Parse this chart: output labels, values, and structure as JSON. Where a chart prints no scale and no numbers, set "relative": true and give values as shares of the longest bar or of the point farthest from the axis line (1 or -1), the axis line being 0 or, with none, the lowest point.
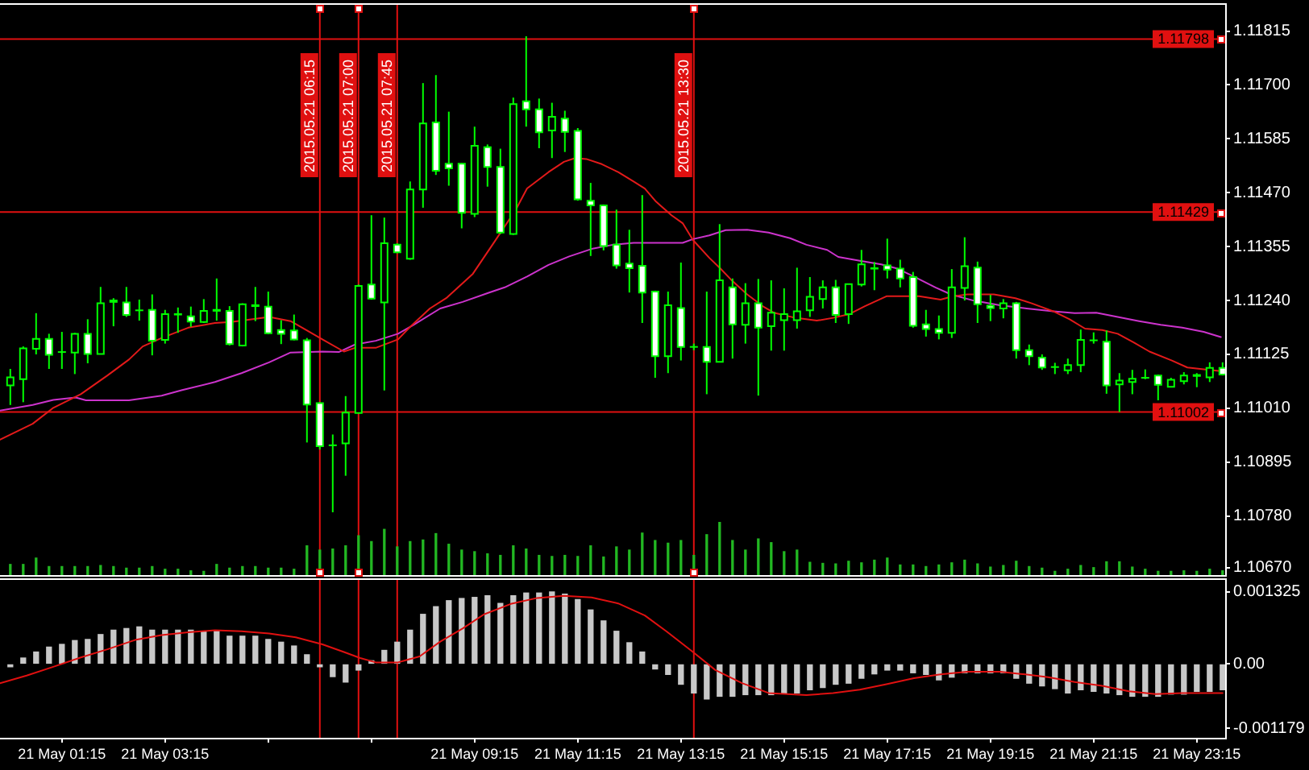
{
  "chart_data": [
    {
      "type": "candlestick",
      "x": [
        "2015-05-21T00:15",
        "2015-05-21T00:30",
        "2015-05-21T00:45",
        "2015-05-21T01:00",
        "2015-05-21T01:15",
        "2015-05-21T01:30",
        "2015-05-21T01:45",
        "2015-05-21T02:00",
        "2015-05-21T02:15",
        "2015-05-21T02:30",
        "2015-05-21T02:45",
        "2015-05-21T03:00",
        "2015-05-21T03:15",
        "2015-05-21T03:30",
        "2015-05-21T03:45",
        "2015-05-21T04:00",
        "2015-05-21T04:15",
        "2015-05-21T04:30",
        "2015-05-21T04:45",
        "2015-05-21T05:00",
        "2015-05-21T05:15",
        "2015-05-21T05:30",
        "2015-05-21T05:45",
        "2015-05-21T06:00",
        "2015-05-21T06:15",
        "2015-05-21T06:30",
        "2015-05-21T06:45",
        "2015-05-21T07:00",
        "2015-05-21T07:15",
        "2015-05-21T07:30",
        "2015-05-21T07:45",
        "2015-05-21T08:00",
        "2015-05-21T08:15",
        "2015-05-21T08:30",
        "2015-05-21T08:45",
        "2015-05-21T09:00",
        "2015-05-21T09:15",
        "2015-05-21T09:30",
        "2015-05-21T09:45",
        "2015-05-21T10:00",
        "2015-05-21T10:15",
        "2015-05-21T10:30",
        "2015-05-21T10:45",
        "2015-05-21T11:00",
        "2015-05-21T11:15",
        "2015-05-21T11:30",
        "2015-05-21T11:45",
        "2015-05-21T12:00",
        "2015-05-21T12:15",
        "2015-05-21T12:30",
        "2015-05-21T12:45",
        "2015-05-21T13:00",
        "2015-05-21T13:15",
        "2015-05-21T13:30",
        "2015-05-21T13:45",
        "2015-05-21T14:00",
        "2015-05-21T14:15",
        "2015-05-21T14:30",
        "2015-05-21T14:45",
        "2015-05-21T15:00",
        "2015-05-21T15:15",
        "2015-05-21T15:30",
        "2015-05-21T15:45",
        "2015-05-21T16:00",
        "2015-05-21T16:15",
        "2015-05-21T16:30",
        "2015-05-21T16:45",
        "2015-05-21T17:00",
        "2015-05-21T17:15",
        "2015-05-21T17:30",
        "2015-05-21T17:45",
        "2015-05-21T18:00",
        "2015-05-21T18:15",
        "2015-05-21T18:30",
        "2015-05-21T18:45",
        "2015-05-21T19:00",
        "2015-05-21T19:15",
        "2015-05-21T19:30",
        "2015-05-21T19:45",
        "2015-05-21T20:00",
        "2015-05-21T20:15",
        "2015-05-21T20:30",
        "2015-05-21T20:45",
        "2015-05-21T21:00",
        "2015-05-21T21:15",
        "2015-05-21T21:30",
        "2015-05-21T21:45",
        "2015-05-21T22:00",
        "2015-05-21T22:15",
        "2015-05-21T22:30",
        "2015-05-21T22:45",
        "2015-05-21T23:00",
        "2015-05-21T23:15",
        "2015-05-21T23:30",
        "2015-05-21T23:45"
      ],
      "ohlc": [
        [
          1.11059,
          1.11094,
          1.11017,
          1.11076
        ],
        [
          1.11072,
          1.11142,
          1.11023,
          1.11138
        ],
        [
          1.11137,
          1.11213,
          1.11125,
          1.11158
        ],
        [
          1.11158,
          1.11169,
          1.11094,
          1.11124
        ],
        [
          1.1113,
          1.11173,
          1.11094,
          1.1113
        ],
        [
          1.11129,
          1.11171,
          1.11083,
          1.11169
        ],
        [
          1.11169,
          1.112,
          1.11106,
          1.11126
        ],
        [
          1.11126,
          1.11269,
          1.11125,
          1.11234
        ],
        [
          1.11237,
          1.11245,
          1.11185,
          1.1124
        ],
        [
          1.11236,
          1.11269,
          1.11205,
          1.11209
        ],
        [
          1.11219,
          1.11242,
          1.11197,
          1.11219
        ],
        [
          1.1122,
          1.11253,
          1.11123,
          1.11154
        ],
        [
          1.11156,
          1.1122,
          1.11148,
          1.11211
        ],
        [
          1.1121,
          1.11225,
          1.11171,
          1.11211
        ],
        [
          1.11206,
          1.11227,
          1.11184,
          1.11195
        ],
        [
          1.11194,
          1.11243,
          1.11192,
          1.11218
        ],
        [
          1.11218,
          1.11287,
          1.11197,
          1.1122
        ],
        [
          1.11218,
          1.11228,
          1.11144,
          1.11147
        ],
        [
          1.11144,
          1.11234,
          1.11142,
          1.11232
        ],
        [
          1.11228,
          1.11269,
          1.11196,
          1.1123
        ],
        [
          1.11227,
          1.11259,
          1.11168,
          1.1117
        ],
        [
          1.11177,
          1.11198,
          1.11147,
          1.11169
        ],
        [
          1.11176,
          1.1121,
          1.11155,
          1.11157
        ],
        [
          1.11155,
          1.1116,
          1.10937,
          1.11018
        ],
        [
          1.11021,
          1.11023,
          1.10922,
          1.10929
        ],
        [
          1.10931,
          1.10954,
          1.10788,
          1.10931
        ],
        [
          1.10935,
          1.11036,
          1.10866,
          1.11001
        ],
        [
          1.11,
          1.11274,
          1.11,
          1.11271
        ],
        [
          1.11274,
          1.11422,
          1.11242,
          1.11244
        ],
        [
          1.11236,
          1.11417,
          1.11048,
          1.11362
        ],
        [
          1.11359,
          1.11362,
          1.11341,
          1.11343
        ],
        [
          1.11329,
          1.11494,
          1.11327,
          1.11477
        ],
        [
          1.11477,
          1.11704,
          1.11438,
          1.11618
        ],
        [
          1.1162,
          1.11721,
          1.11508,
          1.11517
        ],
        [
          1.11532,
          1.11643,
          1.11485,
          1.11522
        ],
        [
          1.11532,
          1.11533,
          1.11394,
          1.11427
        ],
        [
          1.11425,
          1.11611,
          1.11418,
          1.1157
        ],
        [
          1.11567,
          1.11573,
          1.11483,
          1.11525
        ],
        [
          1.11525,
          1.11564,
          1.11382,
          1.11385
        ],
        [
          1.11382,
          1.11673,
          1.1138,
          1.11659
        ],
        [
          1.11665,
          1.11804,
          1.11611,
          1.11648
        ],
        [
          1.11648,
          1.11671,
          1.11565,
          1.11599
        ],
        [
          1.11603,
          1.11662,
          1.11544,
          1.11632
        ],
        [
          1.11628,
          1.11645,
          1.11557,
          1.116
        ],
        [
          1.11602,
          1.11608,
          1.11453,
          1.11456
        ],
        [
          1.11453,
          1.11491,
          1.11335,
          1.11443
        ],
        [
          1.11443,
          1.11445,
          1.11347,
          1.11356
        ],
        [
          1.11359,
          1.11434,
          1.11308,
          1.11315
        ],
        [
          1.11319,
          1.11391,
          1.11257,
          1.11309
        ],
        [
          1.11314,
          1.11465,
          1.11192,
          1.11257
        ],
        [
          1.11259,
          1.11261,
          1.11075,
          1.11121
        ],
        [
          1.11121,
          1.11259,
          1.11085,
          1.1123
        ],
        [
          1.11224,
          1.11321,
          1.11112,
          1.11141
        ],
        [
          1.11141,
          1.11148,
          1.11134,
          1.11141
        ],
        [
          1.11141,
          1.11259,
          1.1104,
          1.11109
        ],
        [
          1.11109,
          1.11403,
          1.11108,
          1.11283
        ],
        [
          1.11268,
          1.11287,
          1.11116,
          1.11189
        ],
        [
          1.11188,
          1.11277,
          1.11148,
          1.11234
        ],
        [
          1.11234,
          1.11286,
          1.11037,
          1.11182
        ],
        [
          1.11185,
          1.11283,
          1.11133,
          1.11214
        ],
        [
          1.11198,
          1.11266,
          1.11133,
          1.11211
        ],
        [
          1.11198,
          1.1131,
          1.1118,
          1.11217
        ],
        [
          1.11219,
          1.1129,
          1.11205,
          1.11248
        ],
        [
          1.11243,
          1.11283,
          1.11223,
          1.11268
        ],
        [
          1.11268,
          1.11284,
          1.11192,
          1.11209
        ],
        [
          1.11211,
          1.11276,
          1.1119,
          1.11275
        ],
        [
          1.11274,
          1.11348,
          1.1127,
          1.11317
        ],
        [
          1.11308,
          1.11322,
          1.11262,
          1.11309
        ],
        [
          1.11315,
          1.11372,
          1.11287,
          1.11306
        ],
        [
          1.11308,
          1.11327,
          1.11268,
          1.11287
        ],
        [
          1.1129,
          1.11301,
          1.11182,
          1.11186
        ],
        [
          1.11189,
          1.1122,
          1.11163,
          1.11179
        ],
        [
          1.11179,
          1.11208,
          1.11157,
          1.11171
        ],
        [
          1.11171,
          1.11307,
          1.1116,
          1.11268
        ],
        [
          1.11267,
          1.11375,
          1.1124,
          1.11313
        ],
        [
          1.1131,
          1.11323,
          1.11192,
          1.11232
        ],
        [
          1.11229,
          1.11252,
          1.11196,
          1.11224
        ],
        [
          1.11223,
          1.11243,
          1.11202,
          1.11234
        ],
        [
          1.11234,
          1.11237,
          1.11116,
          1.11134
        ],
        [
          1.11134,
          1.11146,
          1.11102,
          1.11121
        ],
        [
          1.11118,
          1.11125,
          1.11092,
          1.11097
        ],
        [
          1.11098,
          1.11107,
          1.11083,
          1.11098
        ],
        [
          1.11091,
          1.11116,
          1.11083,
          1.11102
        ],
        [
          1.11102,
          1.11178,
          1.11087,
          1.11156
        ],
        [
          1.11155,
          1.11172,
          1.11148,
          1.11155
        ],
        [
          1.11152,
          1.11176,
          1.11041,
          1.11059
        ],
        [
          1.11061,
          1.11085,
          1.11002,
          1.11069
        ],
        [
          1.11066,
          1.11092,
          1.1104,
          1.11073
        ],
        [
          1.11075,
          1.11093,
          1.11072,
          1.11075
        ],
        [
          1.1108,
          1.11082,
          1.11027,
          1.1106
        ],
        [
          1.11056,
          1.11075,
          1.11055,
          1.11071
        ],
        [
          1.11068,
          1.11087,
          1.11061,
          1.1108
        ],
        [
          1.11079,
          1.11085,
          1.11055,
          1.11081
        ],
        [
          1.11076,
          1.11108,
          1.11066,
          1.11096
        ],
        [
          1.11096,
          1.11108,
          1.1108,
          1.11082
        ]
      ],
      "color": "#00ff00",
      "colors": [
        "#000000",
        "#000000",
        "#000000",
        "#ffffff",
        "#00ff00",
        "#000000",
        "#ffffff",
        "#000000",
        "#000000",
        "#ffffff",
        "#00ff00",
        "#ffffff",
        "#000000",
        "#000000",
        "#ffffff",
        "#000000",
        "#000000",
        "#ffffff",
        "#000000",
        "#000000",
        "#ffffff",
        "#ffffff",
        "#ffffff",
        "#ffffff",
        "#ffffff",
        "#00ff00",
        "#000000",
        "#000000",
        "#ffffff",
        "#000000",
        "#ffffff",
        "#000000",
        "#000000",
        "#ffffff",
        "#ffffff",
        "#ffffff",
        "#000000",
        "#ffffff",
        "#ffffff",
        "#000000",
        "#ffffff",
        "#ffffff",
        "#000000",
        "#ffffff",
        "#ffffff",
        "#ffffff",
        "#ffffff",
        "#ffffff",
        "#ffffff",
        "#ffffff",
        "#ffffff",
        "#000000",
        "#ffffff",
        "#00ff00",
        "#ffffff",
        "#000000",
        "#ffffff",
        "#000000",
        "#ffffff",
        "#000000",
        "#000000",
        "#000000",
        "#000000",
        "#000000",
        "#ffffff",
        "#000000",
        "#000000",
        "#000000",
        "#ffffff",
        "#ffffff",
        "#ffffff",
        "#ffffff",
        "#ffffff",
        "#000000",
        "#000000",
        "#ffffff",
        "#ffffff",
        "#000000",
        "#ffffff",
        "#ffffff",
        "#ffffff",
        "#00ff00",
        "#000000",
        "#000000",
        "#00ff00",
        "#ffffff",
        "#000000",
        "#000000",
        "#00ff00",
        "#ffffff",
        "#000000",
        "#000000",
        "#000000",
        "#000000",
        "#ffffff"
      ],
      "series": [
        {
          "type": "line",
          "color": "#e31a1a",
          "x": [
            "2015-05-21T00:03",
            "2015-05-21T00:41",
            "2015-05-21T01:05",
            "2015-05-21T01:37",
            "2015-05-21T02:08",
            "2015-05-21T02:33",
            "2015-05-21T02:49",
            "2015-05-21T03:11",
            "2015-05-21T03:42",
            "2015-05-21T04:13",
            "2015-05-21T04:32",
            "2015-05-21T04:57",
            "2015-05-21T05:16",
            "2015-05-21T05:41",
            "2015-05-21T05:59",
            "2015-05-21T06:18",
            "2015-05-21T06:43",
            "2015-05-21T06:56",
            "2015-05-21T07:20",
            "2015-05-21T07:46",
            "2015-05-21T07:58",
            "2015-05-21T08:23",
            "2015-05-21T08:42",
            "2015-05-21T09:13",
            "2015-05-21T09:38",
            "2015-05-21T10:03",
            "2015-05-21T10:16",
            "2015-05-21T10:41",
            "2015-05-21T10:59",
            "2015-05-21T11:12",
            "2015-05-21T11:25",
            "2015-05-21T11:43",
            "2015-05-21T12:02",
            "2015-05-21T12:20",
            "2015-05-21T12:33",
            "2015-05-21T12:46",
            "2015-05-21T13:04",
            "2015-05-21T13:17",
            "2015-05-21T13:29",
            "2015-05-21T13:48",
            "2015-05-21T14:01",
            "2015-05-21T14:13",
            "2015-05-21T14:32",
            "2015-05-21T14:50",
            "2015-05-21T15:03",
            "2015-05-21T15:28",
            "2015-05-21T15:53",
            "2015-05-21T16:12",
            "2015-05-21T16:31",
            "2015-05-21T16:49",
            "2015-05-21T17:14",
            "2015-05-21T17:52",
            "2015-05-21T18:17",
            "2015-05-21T18:29",
            "2015-05-21T18:48",
            "2015-05-21T19:19",
            "2015-05-21T19:44",
            "2015-05-21T20:03",
            "2015-05-21T20:28",
            "2015-05-21T20:47",
            "2015-05-21T21:05",
            "2015-05-21T21:25",
            "2015-05-21T21:43",
            "2015-05-21T22:02",
            "2015-05-21T22:20",
            "2015-05-21T22:46",
            "2015-05-21T23:04",
            "2015-05-21T23:23",
            "2015-05-21T23:45"
          ],
          "values": [
            1.10943,
            1.10977,
            1.11011,
            1.1104,
            1.1108,
            1.11114,
            1.11142,
            1.1116,
            1.11182,
            1.11192,
            1.11194,
            1.112,
            1.11205,
            1.11196,
            1.11177,
            1.11157,
            1.11131,
            1.11139,
            1.11139,
            1.11157,
            1.1118,
            1.11223,
            1.11245,
            1.11297,
            1.11365,
            1.11434,
            1.11479,
            1.11514,
            1.11536,
            1.11544,
            1.11542,
            1.11531,
            1.11514,
            1.11494,
            1.11479,
            1.11451,
            1.11422,
            1.11405,
            1.11369,
            1.11331,
            1.11308,
            1.11285,
            1.11253,
            1.11228,
            1.11214,
            1.11203,
            1.11197,
            1.11203,
            1.11211,
            1.11228,
            1.11249,
            1.11249,
            1.11242,
            1.11248,
            1.11253,
            1.11253,
            1.11245,
            1.11234,
            1.11217,
            1.112,
            1.1118,
            1.11177,
            1.11169,
            1.1115,
            1.11131,
            1.11112,
            1.11097,
            1.11093,
            1.11089
          ]
        },
        {
          "type": "line",
          "color": "#cc33cc",
          "x": [
            "2015-05-21T00:03",
            "2015-05-21T00:41",
            "2015-05-21T01:05",
            "2015-05-21T01:31",
            "2015-05-21T01:43",
            "2015-05-21T02:08",
            "2015-05-21T02:33",
            "2015-05-21T03:11",
            "2015-05-21T03:35",
            "2015-05-21T04:13",
            "2015-05-21T04:44",
            "2015-05-21T05:16",
            "2015-05-21T05:41",
            "2015-05-21T06:18",
            "2015-05-21T06:37",
            "2015-05-21T06:56",
            "2015-05-21T07:20",
            "2015-05-21T07:46",
            "2015-05-21T08:04",
            "2015-05-21T08:35",
            "2015-05-21T09:01",
            "2015-05-21T09:32",
            "2015-05-21T09:50",
            "2015-05-21T10:16",
            "2015-05-21T10:41",
            "2015-05-21T11:05",
            "2015-05-21T11:31",
            "2015-05-21T11:56",
            "2015-05-21T12:20",
            "2015-05-21T12:46",
            "2015-05-21T13:17",
            "2015-05-21T13:29",
            "2015-05-21T13:48",
            "2015-05-21T14:07",
            "2015-05-21T14:32",
            "2015-05-21T14:57",
            "2015-05-21T15:22",
            "2015-05-21T15:41",
            "2015-05-21T16:05",
            "2015-05-21T16:18",
            "2015-05-21T16:43",
            "2015-05-21T17:08",
            "2015-05-21T17:27",
            "2015-05-21T17:46",
            "2015-05-21T18:11",
            "2015-05-21T18:29",
            "2015-05-21T18:55",
            "2015-05-21T19:26",
            "2015-05-21T19:57",
            "2015-05-21T20:28",
            "2015-05-21T20:53",
            "2015-05-21T21:18",
            "2015-05-21T21:43",
            "2015-05-21T22:08",
            "2015-05-21T22:33",
            "2015-05-21T22:58",
            "2015-05-21T23:23",
            "2015-05-21T23:43"
          ],
          "values": [
            1.11005,
            1.11017,
            1.11028,
            1.11033,
            1.11027,
            1.11027,
            1.11027,
            1.11037,
            1.11049,
            1.11066,
            1.11085,
            1.11108,
            1.11129,
            1.11131,
            1.1113,
            1.11146,
            1.11154,
            1.11169,
            1.11188,
            1.11223,
            1.11237,
            1.11257,
            1.11268,
            1.11291,
            1.11316,
            1.11334,
            1.1135,
            1.11359,
            1.11363,
            1.11363,
            1.11363,
            1.11371,
            1.11379,
            1.1139,
            1.11391,
            1.11385,
            1.11373,
            1.11359,
            1.11348,
            1.11333,
            1.11325,
            1.11317,
            1.11308,
            1.11291,
            1.11268,
            1.11253,
            1.1124,
            1.1123,
            1.11223,
            1.11217,
            1.11213,
            1.11214,
            1.11205,
            1.11196,
            1.11188,
            1.11182,
            1.11173,
            1.11162
          ]
        }
      ],
      "xlim": [
        "2015-05-21T00:03",
        "2015-05-21T23:48"
      ],
      "ylim": [
        1.10654,
        1.11871
      ],
      "yticks": [
        1.11815,
        {
          "value": 1.117,
          "label": "1.11700"
        },
        1.11585,
        {
          "value": 1.1147,
          "label": "1.11470"
        },
        1.11355,
        {
          "value": 1.1124,
          "label": "1.11240"
        },
        1.11125,
        {
          "value": 1.1101,
          "label": "1.11010"
        },
        1.10895,
        {
          "value": 1.1078,
          "label": "1.10780"
        },
        {
          "value": 1.1067,
          "label": "1.10670"
        }
      ],
      "tick_labels": "y",
      "ref_lines": [
        {
          "axis": "y",
          "value": 1.11798,
          "label": "1.11798",
          "color": "#e01010"
        },
        {
          "axis": "y",
          "value": 1.11429,
          "label": "1.11429",
          "color": "#e01010"
        },
        {
          "axis": "y",
          "value": 1.11002,
          "label": "1.11002",
          "color": "#e01010"
        },
        {
          "axis": "x",
          "value": "2015-05-21T06:15",
          "label": "2015.05.21 06:15",
          "color": "#e01010"
        },
        {
          "axis": "x",
          "value": "2015-05-21T07:00",
          "label": "2015.05.21 07:00",
          "color": "#e01010"
        },
        {
          "axis": "x",
          "value": "2015-05-21T07:45",
          "label": "2015.05.21 07:45",
          "color": "#e01010"
        },
        {
          "axis": "x",
          "value": "2015-05-21T13:30",
          "label": "2015.05.21 13:30",
          "color": "#e01010"
        }
      ]
    },
    {
      "type": "bar",
      "relative": true,
      "x": [
        "2015-05-21T00:15",
        "2015-05-21T00:30",
        "2015-05-21T00:45",
        "2015-05-21T01:00",
        "2015-05-21T01:15",
        "2015-05-21T01:30",
        "2015-05-21T01:45",
        "2015-05-21T02:00",
        "2015-05-21T02:15",
        "2015-05-21T02:30",
        "2015-05-21T02:45",
        "2015-05-21T03:00",
        "2015-05-21T03:15",
        "2015-05-21T03:30",
        "2015-05-21T03:45",
        "2015-05-21T04:00",
        "2015-05-21T04:15",
        "2015-05-21T04:30",
        "2015-05-21T04:45",
        "2015-05-21T05:00",
        "2015-05-21T05:15",
        "2015-05-21T05:30",
        "2015-05-21T05:45",
        "2015-05-21T06:00",
        "2015-05-21T06:15",
        "2015-05-21T06:30",
        "2015-05-21T06:45",
        "2015-05-21T07:00",
        "2015-05-21T07:15",
        "2015-05-21T07:30",
        "2015-05-21T07:45",
        "2015-05-21T08:00",
        "2015-05-21T08:15",
        "2015-05-21T08:30",
        "2015-05-21T08:45",
        "2015-05-21T09:00",
        "2015-05-21T09:15",
        "2015-05-21T09:30",
        "2015-05-21T09:45",
        "2015-05-21T10:00",
        "2015-05-21T10:15",
        "2015-05-21T10:30",
        "2015-05-21T10:45",
        "2015-05-21T11:00",
        "2015-05-21T11:15",
        "2015-05-21T11:30",
        "2015-05-21T11:45",
        "2015-05-21T12:00",
        "2015-05-21T12:15",
        "2015-05-21T12:30",
        "2015-05-21T12:45",
        "2015-05-21T13:00",
        "2015-05-21T13:15",
        "2015-05-21T13:30",
        "2015-05-21T13:45",
        "2015-05-21T14:00",
        "2015-05-21T14:15",
        "2015-05-21T14:30",
        "2015-05-21T14:45",
        "2015-05-21T15:00",
        "2015-05-21T15:15",
        "2015-05-21T15:30",
        "2015-05-21T15:45",
        "2015-05-21T16:00",
        "2015-05-21T16:15",
        "2015-05-21T16:30",
        "2015-05-21T16:45",
        "2015-05-21T17:00",
        "2015-05-21T17:15",
        "2015-05-21T17:30",
        "2015-05-21T17:45",
        "2015-05-21T18:00",
        "2015-05-21T18:15",
        "2015-05-21T18:30",
        "2015-05-21T18:45",
        "2015-05-21T19:00",
        "2015-05-21T19:15",
        "2015-05-21T19:30",
        "2015-05-21T19:45",
        "2015-05-21T20:00",
        "2015-05-21T20:15",
        "2015-05-21T20:30",
        "2015-05-21T20:45",
        "2015-05-21T21:00",
        "2015-05-21T21:15",
        "2015-05-21T21:30",
        "2015-05-21T21:45",
        "2015-05-21T22:00",
        "2015-05-21T22:15",
        "2015-05-21T22:30",
        "2015-05-21T22:45",
        "2015-05-21T23:00",
        "2015-05-21T23:15",
        "2015-05-21T23:30",
        "2015-05-21T23:45"
      ],
      "values": [
        0.2,
        0.2,
        0.32,
        0.16,
        0.16,
        0.16,
        0.16,
        0.18,
        0.16,
        0.13,
        0.13,
        0.16,
        0.11,
        0.11,
        0.08,
        0.07,
        0.2,
        0.13,
        0.16,
        0.16,
        0.13,
        0.13,
        0.11,
        0.55,
        0.47,
        0.49,
        0.55,
        0.74,
        0.63,
        0.86,
        0.53,
        0.63,
        0.66,
        0.78,
        0.58,
        0.47,
        0.44,
        0.4,
        0.37,
        0.55,
        0.49,
        0.37,
        0.35,
        0.37,
        0.35,
        0.55,
        0.34,
        0.53,
        0.47,
        0.79,
        0.65,
        0.6,
        0.65,
        0.37,
        0.76,
        1,
        0.65,
        0.47,
        0.68,
        0.61,
        0.44,
        0.47,
        0.24,
        0.22,
        0.21,
        0.26,
        0.23,
        0.28,
        0.32,
        0.19,
        0.19,
        0.16,
        0.19,
        0.23,
        0.28,
        0.21,
        0.15,
        0.18,
        0.26,
        0.16,
        0.13,
        0.07,
        0.11,
        0.18,
        0.14,
        0.25,
        0.25,
        0.15,
        0.11,
        0.07,
        0.07,
        0.08,
        0.07,
        0.11,
        0.08
      ],
      "color": "#22b822",
      "xlim": [
        "2015-05-21T00:03",
        "2015-05-21T23:48"
      ],
      "tick_labels": false
    },
    {
      "type": "bar",
      "x": [
        "2015-05-21T00:15",
        "2015-05-21T00:30",
        "2015-05-21T00:45",
        "2015-05-21T01:00",
        "2015-05-21T01:15",
        "2015-05-21T01:30",
        "2015-05-21T01:45",
        "2015-05-21T02:00",
        "2015-05-21T02:15",
        "2015-05-21T02:30",
        "2015-05-21T02:45",
        "2015-05-21T03:00",
        "2015-05-21T03:15",
        "2015-05-21T03:30",
        "2015-05-21T03:45",
        "2015-05-21T04:00",
        "2015-05-21T04:15",
        "2015-05-21T04:30",
        "2015-05-21T04:45",
        "2015-05-21T05:00",
        "2015-05-21T05:15",
        "2015-05-21T05:30",
        "2015-05-21T05:45",
        "2015-05-21T06:00",
        "2015-05-21T06:15",
        "2015-05-21T06:30",
        "2015-05-21T06:45",
        "2015-05-21T07:00",
        "2015-05-21T07:15",
        "2015-05-21T07:30",
        "2015-05-21T07:45",
        "2015-05-21T08:00",
        "2015-05-21T08:15",
        "2015-05-21T08:30",
        "2015-05-21T08:45",
        "2015-05-21T09:00",
        "2015-05-21T09:15",
        "2015-05-21T09:30",
        "2015-05-21T09:45",
        "2015-05-21T10:00",
        "2015-05-21T10:15",
        "2015-05-21T10:30",
        "2015-05-21T10:45",
        "2015-05-21T11:00",
        "2015-05-21T11:15",
        "2015-05-21T11:30",
        "2015-05-21T11:45",
        "2015-05-21T12:00",
        "2015-05-21T12:15",
        "2015-05-21T12:30",
        "2015-05-21T12:45",
        "2015-05-21T13:00",
        "2015-05-21T13:15",
        "2015-05-21T13:30",
        "2015-05-21T13:45",
        "2015-05-21T14:00",
        "2015-05-21T14:15",
        "2015-05-21T14:30",
        "2015-05-21T14:45",
        "2015-05-21T15:00",
        "2015-05-21T15:15",
        "2015-05-21T15:30",
        "2015-05-21T15:45",
        "2015-05-21T16:00",
        "2015-05-21T16:15",
        "2015-05-21T16:30",
        "2015-05-21T16:45",
        "2015-05-21T17:00",
        "2015-05-21T17:15",
        "2015-05-21T17:30",
        "2015-05-21T17:45",
        "2015-05-21T18:00",
        "2015-05-21T18:15",
        "2015-05-21T18:30",
        "2015-05-21T18:45",
        "2015-05-21T19:00",
        "2015-05-21T19:15",
        "2015-05-21T19:30",
        "2015-05-21T19:45",
        "2015-05-21T20:00",
        "2015-05-21T20:15",
        "2015-05-21T20:30",
        "2015-05-21T20:45",
        "2015-05-21T21:00",
        "2015-05-21T21:15",
        "2015-05-21T21:30",
        "2015-05-21T21:45",
        "2015-05-21T22:00",
        "2015-05-21T22:15",
        "2015-05-21T22:30",
        "2015-05-21T22:45",
        "2015-05-21T23:00",
        "2015-05-21T23:15",
        "2015-05-21T23:30",
        "2015-05-21T23:45"
      ],
      "series": [
        {
          "color": "#c8c8c8",
          "values": [
            -5e-05,
            0.00011,
            0.00022,
            0.00031,
            0.00036,
            0.00043,
            0.00045,
            0.00054,
            0.00062,
            0.00065,
            0.00068,
            0.00062,
            0.00062,
            0.00062,
            0.00062,
            0.0006,
            0.0006,
            0.00051,
            0.00051,
            0.00051,
            0.00045,
            0.0004,
            0.00033,
            0.00017,
            -5e-05,
            -0.00023,
            -0.00033,
            -0.00011,
            6e-05,
            0.00025,
            0.0004,
            0.00062,
            0.00091,
            0.00105,
            0.00116,
            0.0012,
            0.00122,
            0.00125,
            0.00111,
            0.00125,
            0.0013,
            0.0013,
            0.00132,
            0.00128,
            0.00118,
            0.00099,
            0.00079,
            0.0006,
            0.00039,
            0.00022,
            -9e-05,
            -0.00019,
            -0.00037,
            -0.00053,
            -0.00064,
            -0.00059,
            -0.00059,
            -0.00056,
            -0.00056,
            -0.00056,
            -0.00053,
            -0.00053,
            -0.00047,
            -0.00043,
            -0.00037,
            -0.00035,
            -0.00026,
            -0.00018,
            -0.00011,
            -0.00011,
            -0.00016,
            -0.00019,
            -0.00029,
            -0.00024,
            -0.00016,
            -0.00016,
            -0.00016,
            -0.00016,
            -0.00026,
            -0.00035,
            -0.0004,
            -0.00045,
            -0.00053,
            -0.00047,
            -0.0005,
            -0.00053,
            -0.00056,
            -0.00059,
            -0.00059,
            -0.00059,
            -0.00055,
            -0.00055,
            -0.0005,
            -0.0005,
            -0.00047
          ]
        },
        {
          "type": "line",
          "color": "#e01010",
          "x": [
            "2015-05-21T00:03",
            "2015-05-21T00:34",
            "2015-05-21T01:05",
            "2015-05-21T01:37",
            "2015-05-21T02:08",
            "2015-05-21T02:40",
            "2015-05-21T03:11",
            "2015-05-21T03:42",
            "2015-05-21T04:13",
            "2015-05-21T04:44",
            "2015-05-21T05:16",
            "2015-05-21T05:47",
            "2015-05-21T06:18",
            "2015-05-21T06:43",
            "2015-05-21T07:02",
            "2015-05-21T07:20",
            "2015-05-21T07:46",
            "2015-05-21T08:11",
            "2015-05-21T08:35",
            "2015-05-21T09:01",
            "2015-05-21T09:26",
            "2015-05-21T09:57",
            "2015-05-21T10:28",
            "2015-05-21T10:59",
            "2015-05-21T11:31",
            "2015-05-21T12:02",
            "2015-05-21T12:33",
            "2015-05-21T12:58",
            "2015-05-21T13:29",
            "2015-05-21T13:55",
            "2015-05-21T14:26",
            "2015-05-21T14:57",
            "2015-05-21T15:41",
            "2015-05-21T16:12",
            "2015-05-21T16:43",
            "2015-05-21T17:14",
            "2015-05-21T17:46",
            "2015-05-21T18:17",
            "2015-05-21T18:48",
            "2015-05-21T19:26",
            "2015-05-21T19:50",
            "2015-05-21T20:22",
            "2015-05-21T20:53",
            "2015-05-21T21:25",
            "2015-05-21T21:56",
            "2015-05-21T22:27",
            "2015-05-21T22:58",
            "2015-05-21T23:45"
          ],
          "values": [
            -0.00035,
            -0.00021,
            -5e-05,
            0.00012,
            0.00027,
            0.00044,
            0.00053,
            0.00058,
            0.00062,
            0.0006,
            0.00056,
            0.00049,
            0.00036,
            0.00022,
            0.00011,
            3e-05,
            3e-05,
            0.00014,
            0.00041,
            0.00065,
            0.00091,
            0.0011,
            0.00121,
            0.00125,
            0.00122,
            0.00111,
            0.00089,
            0.0006,
            0.00022,
            -0.00011,
            -0.00035,
            -0.00053,
            -0.00057,
            -0.00053,
            -0.00047,
            -0.00037,
            -0.00026,
            -0.00019,
            -0.00014,
            -0.00014,
            -0.00018,
            -0.00024,
            -0.00033,
            -0.0004,
            -0.0005,
            -0.00055,
            -0.00053,
            -0.00053
          ]
        }
      ],
      "xlim": [
        "2015-05-21T00:03",
        "2015-05-21T23:48"
      ],
      "xticks": [
        {
          "value": "2015-05-21T01:15",
          "label": "21 May 01:15"
        },
        {
          "value": "2015-05-21T03:15",
          "label": "21 May 03:15"
        },
        {
          "value": "2015-05-21T05:15",
          "label": null
        },
        {
          "value": "2015-05-21T07:15",
          "label": null
        },
        {
          "value": "2015-05-21T09:15",
          "label": "21 May 09:15"
        },
        {
          "value": "2015-05-21T11:15",
          "label": "21 May 11:15"
        },
        {
          "value": "2015-05-21T13:15",
          "label": "21 May 13:15"
        },
        {
          "value": "2015-05-21T15:15",
          "label": "21 May 15:15"
        },
        {
          "value": "2015-05-21T17:15",
          "label": "21 May 17:15"
        },
        {
          "value": "2015-05-21T19:15",
          "label": "21 May 19:15"
        },
        {
          "value": "2015-05-21T21:15",
          "label": "21 May 21:15"
        },
        {
          "value": "2015-05-21T23:15",
          "label": "21 May 23:15"
        }
      ],
      "ylim": [
        -0.00135,
        0.00154
      ],
      "yticks": [
        0.001325,
        {
          "value": 0,
          "label": "0.00"
        },
        -0.001179
      ],
      "ref_lines": [
        {
          "axis": "x",
          "value": "2015-05-21T06:15",
          "color": "#e01010"
        },
        {
          "axis": "x",
          "value": "2015-05-21T07:00",
          "color": "#e01010"
        },
        {
          "axis": "x",
          "value": "2015-05-21T07:45",
          "color": "#e01010"
        },
        {
          "axis": "x",
          "value": "2015-05-21T13:30",
          "color": "#e01010"
        }
      ]
    }
  ]
}
